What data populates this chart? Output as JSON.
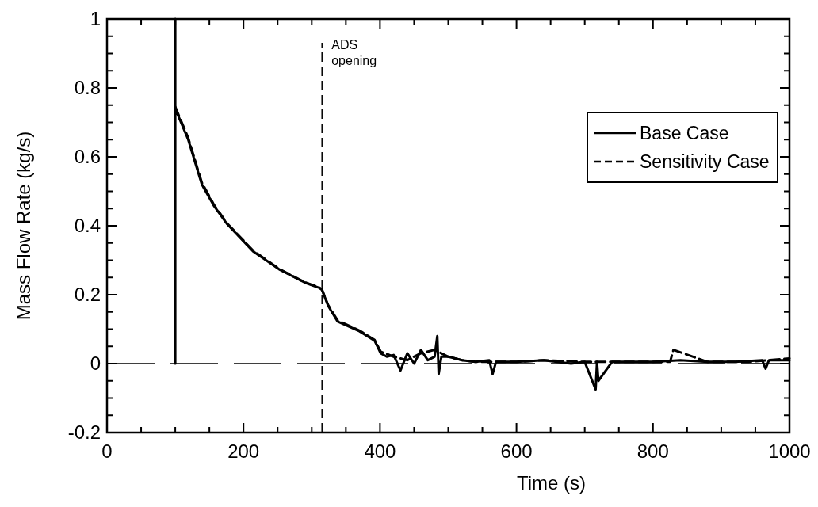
{
  "chart_data": {
    "type": "line",
    "xlabel": "Time (s)",
    "ylabel": "Mass Flow Rate (kg/s)",
    "xlim": [
      0,
      1000
    ],
    "ylim": [
      -0.2,
      1
    ],
    "xticks": [
      0,
      {
        "value": 50,
        "label": null
      },
      {
        "value": 100,
        "label": null
      },
      {
        "value": 150,
        "label": null
      },
      200,
      {
        "value": 250,
        "label": null
      },
      {
        "value": 300,
        "label": null
      },
      {
        "value": 350,
        "label": null
      },
      400,
      {
        "value": 450,
        "label": null
      },
      {
        "value": 500,
        "label": null
      },
      {
        "value": 550,
        "label": null
      },
      600,
      {
        "value": 650,
        "label": null
      },
      {
        "value": 700,
        "label": null
      },
      {
        "value": 750,
        "label": null
      },
      800,
      {
        "value": 850,
        "label": null
      },
      {
        "value": 900,
        "label": null
      },
      {
        "value": 950,
        "label": null
      },
      1000
    ],
    "yticks": [
      -0.2,
      {
        "value": -0.15,
        "label": null
      },
      {
        "value": -0.1,
        "label": null
      },
      {
        "value": -0.05,
        "label": null
      },
      0,
      {
        "value": 0.05,
        "label": null
      },
      {
        "value": 0.1,
        "label": null
      },
      {
        "value": 0.15,
        "label": null
      },
      0.2,
      {
        "value": 0.25,
        "label": null
      },
      {
        "value": 0.3,
        "label": null
      },
      {
        "value": 0.35,
        "label": null
      },
      0.4,
      {
        "value": 0.45,
        "label": null
      },
      {
        "value": 0.5,
        "label": null
      },
      {
        "value": 0.55,
        "label": null
      },
      0.6,
      {
        "value": 0.65,
        "label": null
      },
      {
        "value": 0.7,
        "label": null
      },
      {
        "value": 0.75,
        "label": null
      },
      0.8,
      {
        "value": 0.85,
        "label": null
      },
      {
        "value": 0.9,
        "label": null
      },
      {
        "value": 0.95,
        "label": null
      },
      1
    ],
    "grid": false,
    "legend": "top right",
    "series": [
      {
        "name": "Base Case",
        "color": "#000000",
        "line_style": "solid",
        "x": [
          100,
          100,
          100,
          119,
          139,
          157,
          176,
          214,
          252,
          290,
          311,
          315,
          324,
          338,
          370,
          392,
          401,
          410,
          420,
          430,
          440,
          450,
          460,
          470,
          480,
          484,
          486,
          490,
          500,
          520,
          540,
          560,
          565,
          570,
          600,
          640,
          680,
          700,
          716,
          718,
          720,
          740,
          760,
          800,
          840,
          880,
          920,
          960,
          965,
          970,
          1000
        ],
        "values": [
          0,
          1,
          0.74,
          0.65,
          0.52,
          0.457,
          0.405,
          0.326,
          0.274,
          0.235,
          0.22,
          0.214,
          0.168,
          0.122,
          0.094,
          0.067,
          0.03,
          0.02,
          0.025,
          -0.02,
          0.03,
          0,
          0.04,
          0.01,
          0.02,
          0.08,
          -0.03,
          0.02,
          0.02,
          0.01,
          0.005,
          0.01,
          -0.03,
          0.005,
          0.005,
          0.01,
          0,
          0.005,
          -0.075,
          0.005,
          -0.05,
          0.005,
          0.005,
          0.005,
          0.01,
          0.005,
          0.005,
          0.01,
          -0.015,
          0.01,
          0.01
        ]
      },
      {
        "name": "Sensitivity Case",
        "color": "#000000",
        "line_style": "dashed",
        "x": [
          100,
          119,
          139,
          157,
          176,
          214,
          252,
          290,
          311,
          315,
          324,
          338,
          370,
          392,
          401,
          420,
          440,
          460,
          480,
          500,
          520,
          540,
          600,
          640,
          700,
          760,
          800,
          825,
          830,
          880,
          940,
          1000
        ],
        "values": [
          0.745,
          0.655,
          0.525,
          0.46,
          0.407,
          0.328,
          0.275,
          0.236,
          0.221,
          0.215,
          0.17,
          0.125,
          0.096,
          0.069,
          0.035,
          0.02,
          0.01,
          0.03,
          0.04,
          0.02,
          0.01,
          0.005,
          0.005,
          0.01,
          0.005,
          0.005,
          0.005,
          0.005,
          0.04,
          0.005,
          0.005,
          0.015
        ]
      }
    ],
    "ref_lines": [
      {
        "axis": "x",
        "value": 315,
        "label": "ADS\nopening",
        "line_style": "dashed"
      },
      {
        "axis": "y",
        "value": 0,
        "line_style": "dashed"
      }
    ]
  }
}
